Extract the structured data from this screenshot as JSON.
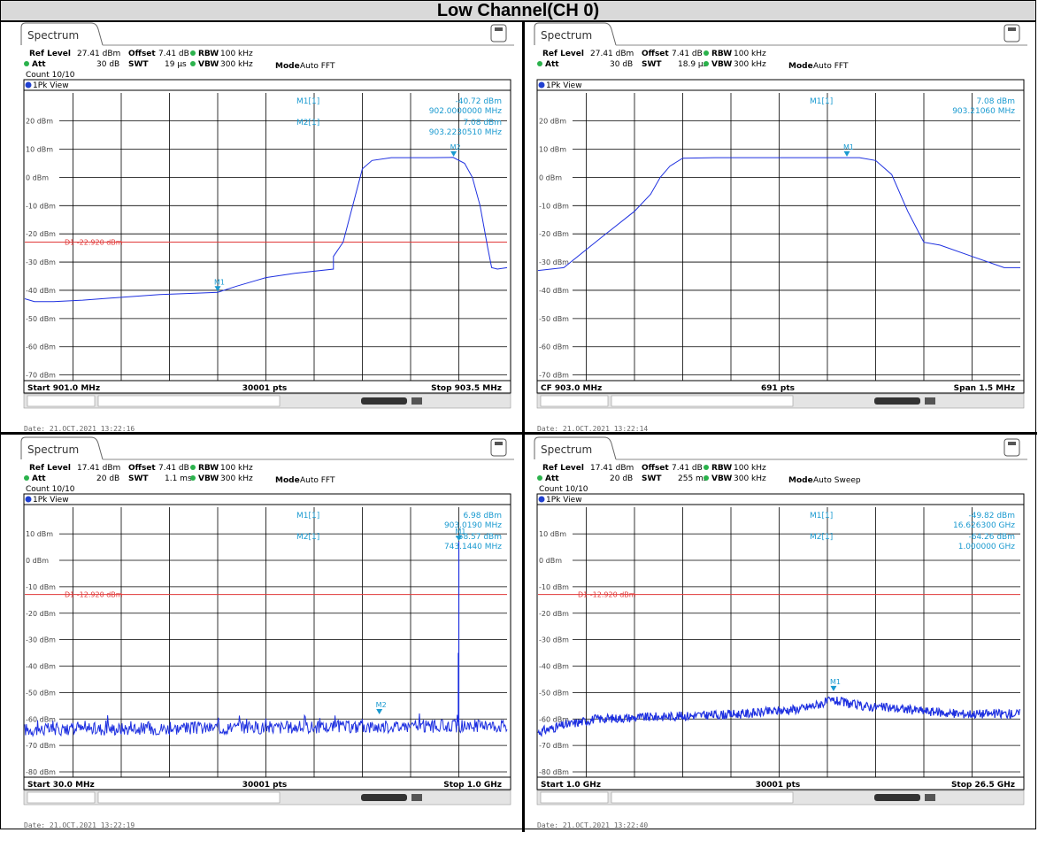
{
  "title": "Low Channel(CH 0)",
  "colors": {
    "trace": "#1e30e0",
    "limit": "#e03a3a",
    "marker": "#1a9ad0",
    "grid": "#000000"
  },
  "panels": [
    {
      "tab": "Spectrum",
      "ref_level": "27.41 dBm",
      "offset": "7.41 dB",
      "rbw": "100 kHz",
      "att": "30 dB",
      "swt": "19 µs",
      "vbw": "300 kHz",
      "mode": "Auto FFT",
      "count": "Count 10/10",
      "view": "1Pk View",
      "markers_text": [
        {
          "name": "M1[1]",
          "level": "-40.72 dBm",
          "freq": "902.0000000 MHz"
        },
        {
          "name": "M2[1]",
          "level": "7.08 dBm",
          "freq": "903.2230510 MHz"
        }
      ],
      "limit_label": "D1  -22.920 dBm",
      "footer_left": "Start 901.0 MHz",
      "footer_mid": "30001 pts",
      "footer_right": "Stop 903.5 MHz",
      "date": "Date: 21.OCT.2021  13:22:16"
    },
    {
      "tab": "Spectrum",
      "ref_level": "27.41 dBm",
      "offset": "7.41 dB",
      "rbw": "100 kHz",
      "att": "30 dB",
      "swt": "18.9 µs",
      "vbw": "300 kHz",
      "mode": "Auto FFT",
      "count": "",
      "view": "1Pk View",
      "markers_text": [
        {
          "name": "M1[1]",
          "level": "7.08 dBm",
          "freq": "903.21060 MHz"
        }
      ],
      "limit_label": "",
      "footer_left": "CF 903.0 MHz",
      "footer_mid": "691 pts",
      "footer_right": "Span 1.5 MHz",
      "date": "Date: 21.OCT.2021  13:22:14"
    },
    {
      "tab": "Spectrum",
      "ref_level": "17.41 dBm",
      "offset": "7.41 dB",
      "rbw": "100 kHz",
      "att": "20 dB",
      "swt": "1.1 ms",
      "vbw": "300 kHz",
      "mode": "Auto FFT",
      "count": "Count 10/10",
      "view": "1Pk View",
      "markers_text": [
        {
          "name": "M1[1]",
          "level": "6.98 dBm",
          "freq": "903.0190 MHz"
        },
        {
          "name": "M2[1]",
          "level": "-58.57 dBm",
          "freq": "743.1440 MHz"
        }
      ],
      "limit_label": "D1  -12.920 dBm",
      "footer_left": "Start 30.0 MHz",
      "footer_mid": "30001 pts",
      "footer_right": "Stop 1.0 GHz",
      "date": "Date: 21.OCT.2021  13:22:19"
    },
    {
      "tab": "Spectrum",
      "ref_level": "17.41 dBm",
      "offset": "7.41 dB",
      "rbw": "100 kHz",
      "att": "20 dB",
      "swt": "255 ms",
      "vbw": "300 kHz",
      "mode": "Auto Sweep",
      "count": "Count 10/10",
      "view": "1Pk View",
      "markers_text": [
        {
          "name": "M1[1]",
          "level": "-49.82 dBm",
          "freq": "16.626300 GHz"
        },
        {
          "name": "M2[1]",
          "level": "-64.26 dBm",
          "freq": "1.000000 GHz"
        }
      ],
      "limit_label": "D1  -12.920 dBm",
      "footer_left": "Start 1.0 GHz",
      "footer_mid": "30001 pts",
      "footer_right": "Stop 26.5 GHz",
      "date": "Date: 21.OCT.2021  13:22:40"
    }
  ],
  "chart_data": [
    {
      "type": "line",
      "x_unit": "MHz",
      "y_unit": "dBm",
      "xlim": [
        901.0,
        903.5
      ],
      "ylim": [
        -72,
        27.41
      ],
      "yticks": [
        20,
        10,
        0,
        -10,
        -20,
        -30,
        -40,
        -50,
        -60,
        -70
      ],
      "ytick_labels": [
        "20 dBm",
        "10 dBm",
        "0 dBm",
        "-10 dBm",
        "-20 dBm",
        "-30 dBm",
        "-40 dBm",
        "-50 dBm",
        "-60 dBm",
        "-70 dBm"
      ],
      "limit_line": -22.92,
      "series": [
        {
          "x": [
            901.0,
            901.05,
            901.15,
            901.3,
            901.5,
            901.7,
            901.9,
            902.0,
            902.1,
            902.2,
            902.25,
            902.4,
            902.6,
            902.6,
            902.65,
            902.7,
            902.75,
            902.8,
            902.9,
            903.0,
            903.1,
            903.22,
            903.28,
            903.32,
            903.36,
            903.4,
            903.42,
            903.45,
            903.5
          ],
          "y": [
            -43,
            -44,
            -44,
            -43.5,
            -42.5,
            -41.5,
            -41,
            -40.7,
            -38.5,
            -36.5,
            -35.5,
            -34,
            -32.5,
            -28,
            -23,
            -10,
            3,
            6,
            7,
            7,
            7,
            7.1,
            5,
            0,
            -10,
            -25,
            -32,
            -32.5,
            -32
          ]
        }
      ],
      "markers": [
        {
          "name": "M1",
          "x": 902.0,
          "y": -40.72
        },
        {
          "name": "M2",
          "x": 903.223051,
          "y": 7.08
        }
      ]
    },
    {
      "type": "line",
      "x_unit": "MHz",
      "y_unit": "dBm",
      "xlim": [
        902.25,
        903.75
      ],
      "ylim": [
        -72,
        27.41
      ],
      "yticks": [
        20,
        10,
        0,
        -10,
        -20,
        -30,
        -40,
        -50,
        -60,
        -70
      ],
      "ytick_labels": [
        "20 dBm",
        "10 dBm",
        "0 dBm",
        "-10 dBm",
        "-20 dBm",
        "-30 dBm",
        "-40 dBm",
        "-50 dBm",
        "-60 dBm",
        "-70 dBm"
      ],
      "series": [
        {
          "x": [
            902.25,
            902.33,
            902.45,
            902.55,
            902.6,
            902.63,
            902.66,
            902.7,
            902.8,
            903.0,
            903.25,
            903.3,
            903.35,
            903.4,
            903.45,
            903.5,
            903.6,
            903.7,
            903.75
          ],
          "y": [
            -33,
            -32,
            -21,
            -12,
            -6,
            0,
            4,
            6.8,
            7,
            7,
            7,
            6,
            1,
            -12,
            -23,
            -24,
            -28,
            -32,
            -32
          ]
        }
      ],
      "markers": [
        {
          "name": "M1",
          "x": 903.2106,
          "y": 7.08
        }
      ]
    },
    {
      "type": "line",
      "x_unit": "MHz",
      "y_unit": "dBm",
      "xlim": [
        30,
        1000
      ],
      "ylim": [
        -82,
        17.41
      ],
      "yticks": [
        10,
        0,
        -10,
        -20,
        -30,
        -40,
        -50,
        -60,
        -70,
        -80
      ],
      "ytick_labels": [
        "10 dBm",
        "0 dBm",
        "-10 dBm",
        "-20 dBm",
        "-30 dBm",
        "-40 dBm",
        "-50 dBm",
        "-60 dBm",
        "-70 dBm",
        "-80 dBm"
      ],
      "limit_line": -12.92,
      "noise_floor": {
        "start": -64,
        "end": -62.5,
        "spread": 2.5
      },
      "spikes": [
        {
          "x": 903.0,
          "y": 6.98
        },
        {
          "x": 902.0,
          "y": -35
        }
      ],
      "markers": [
        {
          "name": "M1",
          "x": 903.019,
          "y": 6.98
        },
        {
          "name": "M2",
          "x": 743.144,
          "y": -58.57
        }
      ]
    },
    {
      "type": "line",
      "x_unit": "GHz",
      "y_unit": "dBm",
      "xlim": [
        1.0,
        26.5
      ],
      "ylim": [
        -82,
        17.41
      ],
      "yticks": [
        10,
        0,
        -10,
        -20,
        -30,
        -40,
        -50,
        -60,
        -70,
        -80
      ],
      "ytick_labels": [
        "10 dBm",
        "0 dBm",
        "-10 dBm",
        "-20 dBm",
        "-30 dBm",
        "-40 dBm",
        "-50 dBm",
        "-60 dBm",
        "-70 dBm",
        "-80 dBm"
      ],
      "limit_line": -12.92,
      "noise_profile": {
        "x": [
          1.0,
          2.0,
          4.0,
          8.0,
          12.0,
          15.0,
          16.6,
          18.0,
          20.0,
          23.0,
          26.5
        ],
        "y": [
          -65,
          -63,
          -60,
          -59,
          -58,
          -56,
          -53,
          -55,
          -56,
          -58,
          -58
        ]
      },
      "markers": [
        {
          "name": "M1",
          "x": 16.6263,
          "y": -49.82
        }
      ]
    }
  ]
}
